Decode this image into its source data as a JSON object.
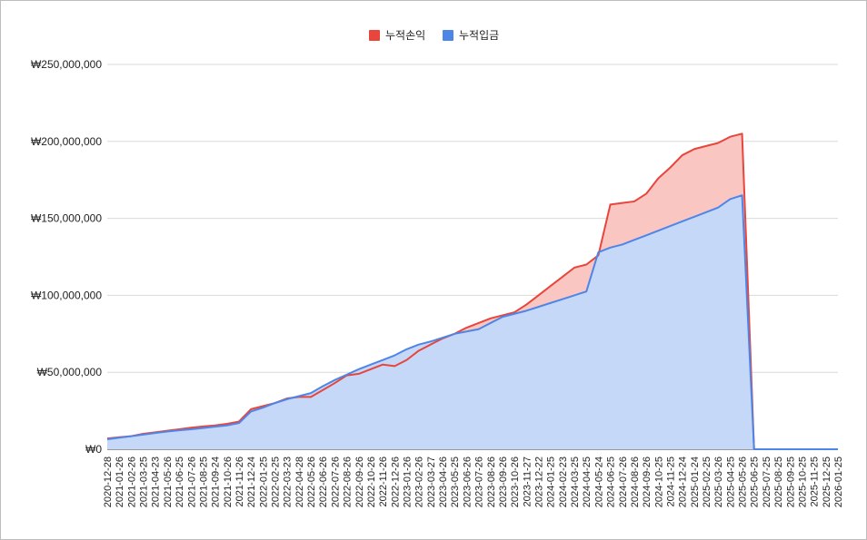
{
  "chart_data": {
    "type": "area",
    "title": "",
    "xlabel": "",
    "ylabel": "",
    "ylim": [
      0,
      250000000
    ],
    "y_ticks": [
      {
        "value": 0,
        "label": "₩0"
      },
      {
        "value": 50000000,
        "label": "₩50,000,000"
      },
      {
        "value": 100000000,
        "label": "₩100,000,000"
      },
      {
        "value": 150000000,
        "label": "₩150,000,000"
      },
      {
        "value": 200000000,
        "label": "₩200,000,000"
      },
      {
        "value": 250000000,
        "label": "₩250,000,000"
      }
    ],
    "grid": true,
    "legend_position": "top-center",
    "x_tick_labels": [
      "2020-12-28",
      "2021-01-26",
      "2021-02-26",
      "2021-03-25",
      "2021-04-23",
      "2021-05-26",
      "2021-06-25",
      "2021-07-26",
      "2021-08-25",
      "2021-09-24",
      "2021-10-26",
      "2021-11-26",
      "2021-12-24",
      "2022-01-25",
      "2022-02-25",
      "2022-03-23",
      "2022-04-28",
      "2022-05-26",
      "2022-06-26",
      "2022-07-26",
      "2022-08-26",
      "2022-09-26",
      "2022-10-26",
      "2022-11-26",
      "2022-12-26",
      "2023-01-26",
      "2023-02-26",
      "2023-03-27",
      "2023-04-26",
      "2023-05-25",
      "2023-06-26",
      "2023-07-26",
      "2023-08-26",
      "2023-09-26",
      "2023-10-26",
      "2023-11-27",
      "2023-12-22",
      "2024-01-25",
      "2024-02-23",
      "2024-03-25",
      "2024-04-25",
      "2024-05-24",
      "2024-06-25",
      "2024-07-26",
      "2024-08-26",
      "2024-09-26",
      "2024-10-25",
      "2024-11-25",
      "2024-12-24",
      "2025-01-24",
      "2025-02-25",
      "2025-03-26",
      "2025-04-25",
      "2025-05-26",
      "2025-06-25",
      "2025-07-25",
      "2025-08-25",
      "2025-09-25",
      "2025-10-25",
      "2025-11-25",
      "2025-12-25",
      "2026-01-25"
    ],
    "series": [
      {
        "name": "누적손익",
        "color": "#e8453c",
        "fill": "#f9c6c2",
        "values": [
          7000000,
          7800000,
          8500000,
          10000000,
          11000000,
          12000000,
          13000000,
          14000000,
          14800000,
          15500000,
          16500000,
          18000000,
          26000000,
          28000000,
          30000000,
          33000000,
          34000000,
          34000000,
          38500000,
          43000000,
          48000000,
          49000000,
          52000000,
          55000000,
          54000000,
          58000000,
          64000000,
          68000000,
          72000000,
          75000000,
          79000000,
          82000000,
          85000000,
          87000000,
          89000000,
          94000000,
          100000000,
          106000000,
          112000000,
          118000000,
          120000000,
          126000000,
          159000000,
          160000000,
          161000000,
          166000000,
          176000000,
          183000000,
          191000000,
          195000000,
          197000000,
          199000000,
          203000000,
          205000000,
          0,
          0,
          0,
          0,
          0,
          0,
          0,
          0
        ]
      },
      {
        "name": "누적입금",
        "color": "#4e86e8",
        "fill": "#c6d8f8",
        "values": [
          6500000,
          7500000,
          8500000,
          9500000,
          10500000,
          11500000,
          12300000,
          13000000,
          13800000,
          14700000,
          15500000,
          17000000,
          24500000,
          27000000,
          30000000,
          32500000,
          34500000,
          36500000,
          41000000,
          45000000,
          48500000,
          52000000,
          55000000,
          58000000,
          61000000,
          65000000,
          68000000,
          70000000,
          72500000,
          75000000,
          76500000,
          78000000,
          82000000,
          86000000,
          88000000,
          90000000,
          92500000,
          95000000,
          97500000,
          100000000,
          102500000,
          128000000,
          131000000,
          133000000,
          136000000,
          139000000,
          142000000,
          145000000,
          148000000,
          151000000,
          154000000,
          157000000,
          162500000,
          165000000,
          0,
          0,
          0,
          0,
          0,
          0,
          0,
          0
        ]
      }
    ]
  }
}
